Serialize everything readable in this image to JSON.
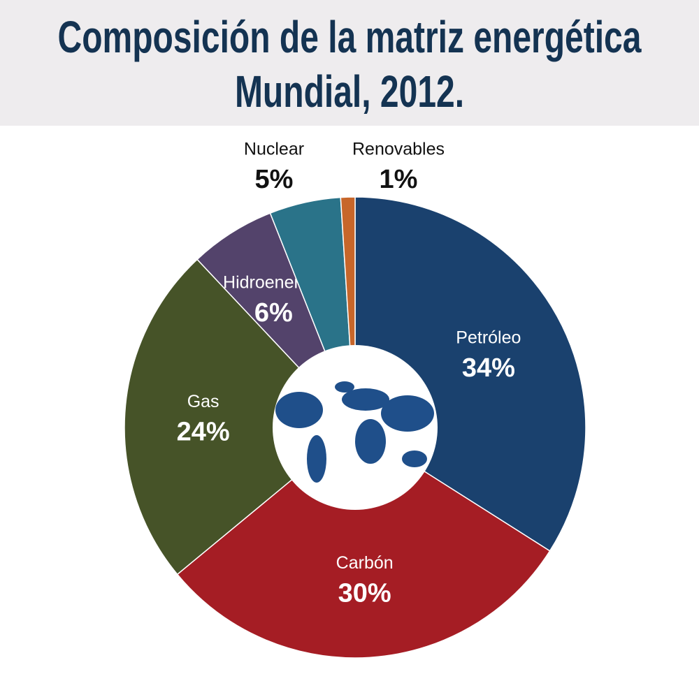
{
  "chart_data": {
    "type": "donut",
    "title": "Composición de la matriz energética Mundial, 2012.",
    "categories": [
      "Petróleo",
      "Carbón",
      "Gas",
      "Hidroenergía",
      "Nuclear",
      "Renovables"
    ],
    "values": [
      34,
      30,
      24,
      6,
      5,
      1
    ],
    "value_labels": [
      "34%",
      "30%",
      "24%",
      "6%",
      "5%",
      "1%"
    ],
    "colors": [
      "#1a416e",
      "#a51d24",
      "#465328",
      "#53436b",
      "#2a7389",
      "#c7662a"
    ]
  }
}
